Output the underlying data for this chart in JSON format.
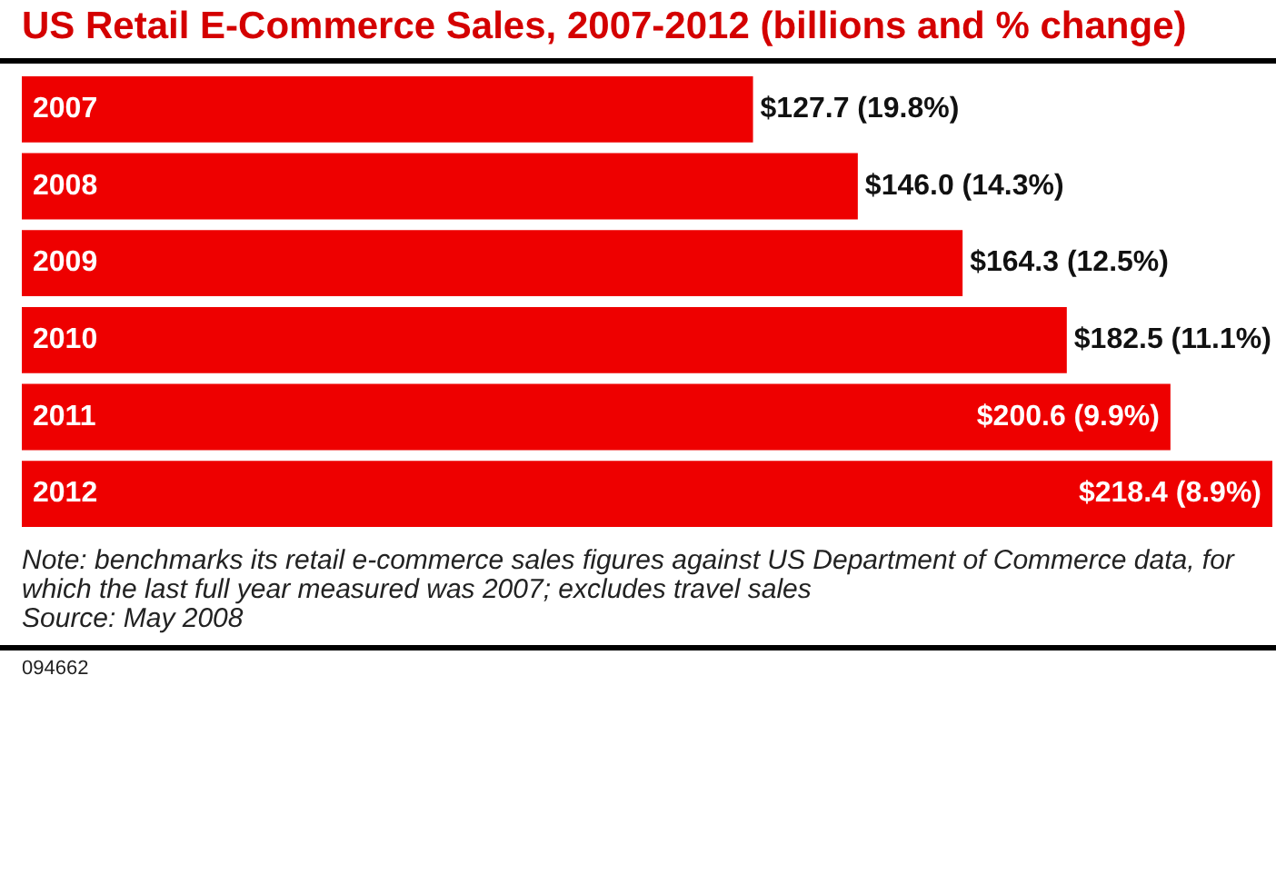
{
  "chart_data": {
    "type": "bar",
    "orientation": "horizontal",
    "title": "US Retail E-Commerce Sales, 2007-2012 (billions and % change)",
    "categories": [
      "2007",
      "2008",
      "2009",
      "2010",
      "2011",
      "2012"
    ],
    "values": [
      127.7,
      146.0,
      164.3,
      182.5,
      200.6,
      218.4
    ],
    "value_labels": [
      "$127.7 (19.8%)",
      "$146.0 (14.3%)",
      "$164.3 (12.5%)",
      "$182.5 (11.1%)",
      "$200.6 (9.9%)",
      "$218.4 (8.9%)"
    ],
    "color": "#ee0000",
    "annotations": [
      "Note: benchmarks its retail e-commerce sales figures against US Department of Commerce data, for which the last full year measured was 2007; excludes travel sales",
      "Source: May 2008",
      "094662"
    ]
  }
}
